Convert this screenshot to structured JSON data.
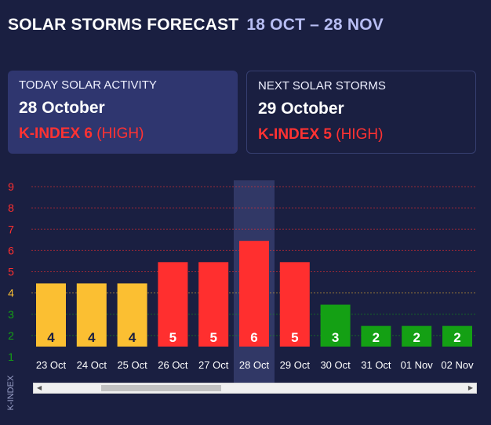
{
  "header": {
    "title": "SOLAR STORMS FORECAST",
    "range": "18 OCT – 28 NOV"
  },
  "today": {
    "label": "TODAY SOLAR ACTIVITY",
    "date": "28 October",
    "kindex": "K-INDEX 6",
    "level": "(HIGH)"
  },
  "next": {
    "label": "NEXT SOLAR STORMS",
    "date": "29 October",
    "kindex": "K-INDEX 5",
    "level": "(HIGH)"
  },
  "colors": {
    "low": "#14a014",
    "medium": "#fbbf32",
    "high": "#ff2f2f",
    "highlight": "#313866"
  },
  "chart_data": {
    "type": "bar",
    "ylabel": "K-INDEX",
    "ylim": [
      1,
      9
    ],
    "yticks": [
      1,
      2,
      3,
      4,
      5,
      6,
      7,
      8,
      9
    ],
    "categories": [
      "23 Oct",
      "24 Oct",
      "25 Oct",
      "26 Oct",
      "27 Oct",
      "28 Oct",
      "29 Oct",
      "30 Oct",
      "31 Oct",
      "01 Nov",
      "02 Nov"
    ],
    "values": [
      4,
      4,
      4,
      5,
      5,
      6,
      5,
      3,
      2,
      2,
      2
    ],
    "highlighted": "28 Oct"
  },
  "scrollbar": {
    "left_arrow": "◀",
    "right_arrow": "▶"
  }
}
